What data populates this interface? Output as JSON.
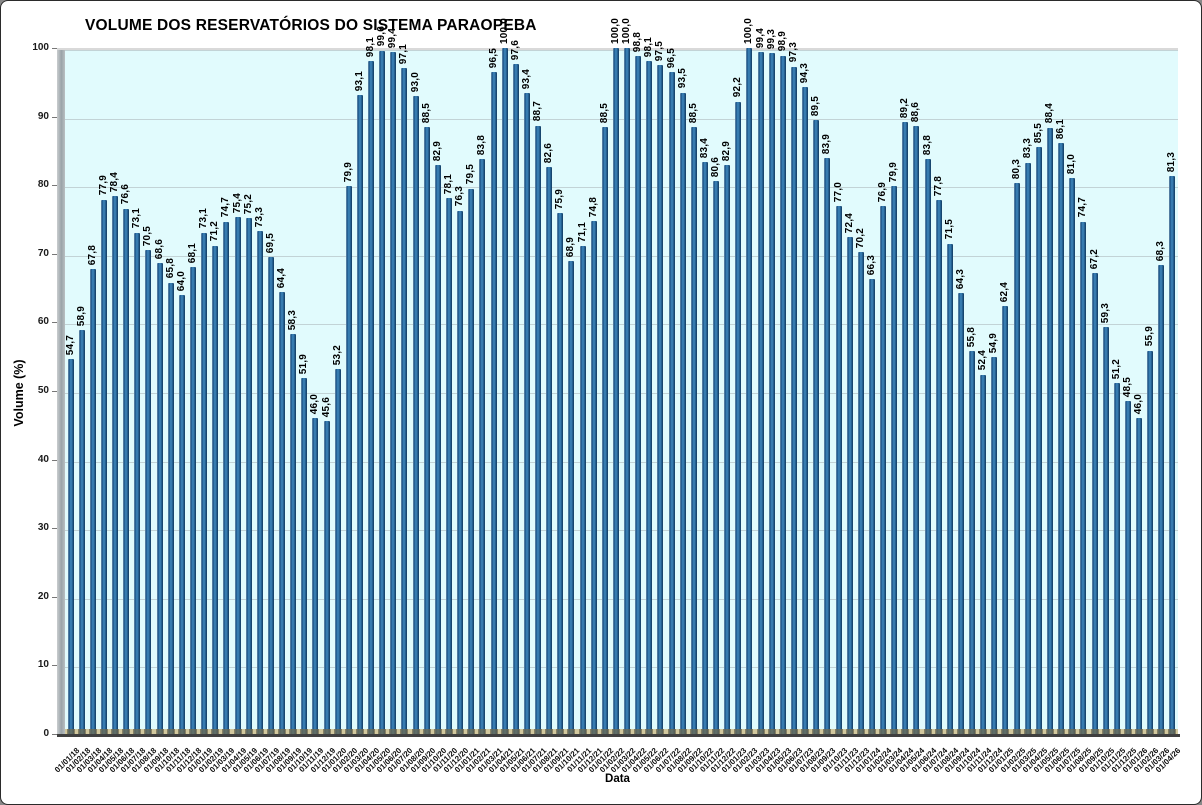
{
  "chart_data": {
    "type": "bar",
    "title": "VOLUME DOS RESERVATÓRIOS DO SISTEMA PARAOPEBA",
    "xlabel": "Data",
    "ylabel": "Volume (%)",
    "ylim": [
      0,
      100
    ],
    "yticks": [
      0,
      10,
      20,
      30,
      40,
      50,
      60,
      70,
      80,
      90,
      100
    ],
    "grid": true,
    "legend": "none",
    "decimal_separator": ",",
    "colors": {
      "bar": "#2e6da4",
      "bar_edge": "#12395e",
      "plot_background": "#e1fbfd",
      "floor": "#d2c89e",
      "wall": "#9aa3a8",
      "axis_line": "#3f3f3f",
      "gridline": "#aab2b6"
    },
    "categories": [
      "01/01/18",
      "01/02/18",
      "01/03/18",
      "01/04/18",
      "01/05/18",
      "01/06/18",
      "01/07/18",
      "01/08/18",
      "01/09/18",
      "01/10/18",
      "01/11/18",
      "01/12/18",
      "01/01/19",
      "01/02/19",
      "01/03/19",
      "01/04/19",
      "01/05/19",
      "01/06/19",
      "01/07/19",
      "01/08/19",
      "01/09/19",
      "01/10/19",
      "01/11/19",
      "01/12/19",
      "01/01/20",
      "01/02/20",
      "01/03/20",
      "01/04/20",
      "01/05/20",
      "01/06/20",
      "01/07/20",
      "01/08/20",
      "01/09/20",
      "01/10/20",
      "01/11/20",
      "01/12/20",
      "01/01/21",
      "01/02/21",
      "01/03/21",
      "01/04/21",
      "01/05/21",
      "01/06/21",
      "01/07/21",
      "01/08/21",
      "01/09/21",
      "01/10/21",
      "01/11/21",
      "01/12/21",
      "01/01/22",
      "01/02/22",
      "01/03/22",
      "01/04/22",
      "01/05/22",
      "01/06/22",
      "01/07/22",
      "01/08/22",
      "01/09/22",
      "01/10/22",
      "01/11/22",
      "01/12/22",
      "01/01/23",
      "01/02/23",
      "01/03/23",
      "01/04/23",
      "01/05/23",
      "01/06/23",
      "01/07/23",
      "01/08/23",
      "01/09/23",
      "01/10/23",
      "01/11/23",
      "01/12/23",
      "01/01/24",
      "01/02/24",
      "01/03/24",
      "01/04/24",
      "01/05/24",
      "01/06/24",
      "01/07/24",
      "01/08/24",
      "01/09/24",
      "01/10/24",
      "01/11/24",
      "01/12/24",
      "01/01/25",
      "01/02/25",
      "01/03/25",
      "01/04/25",
      "01/05/25",
      "01/06/25",
      "01/07/25",
      "01/08/25",
      "01/09/25",
      "01/10/25",
      "01/11/25",
      "01/12/25",
      "01/01/26",
      "01/02/26",
      "01/03/26",
      "01/04/26"
    ],
    "values": [
      54.7,
      58.9,
      67.8,
      77.9,
      78.4,
      76.6,
      73.1,
      70.5,
      68.6,
      65.8,
      64.0,
      68.1,
      73.1,
      71.2,
      74.7,
      75.4,
      75.2,
      73.3,
      69.5,
      64.4,
      58.3,
      51.9,
      46.0,
      45.6,
      53.2,
      79.9,
      93.1,
      98.1,
      99.6,
      99.4,
      97.1,
      93.0,
      88.5,
      82.9,
      78.1,
      76.3,
      79.5,
      83.8,
      96.5,
      100.0,
      97.6,
      93.4,
      88.7,
      82.6,
      75.9,
      68.9,
      71.1,
      74.8,
      88.5,
      100.0,
      100.0,
      98.8,
      98.1,
      97.5,
      96.5,
      93.5,
      88.5,
      83.4,
      80.6,
      82.9,
      92.2,
      100.0,
      99.4,
      99.3,
      98.9,
      97.3,
      94.3,
      89.5,
      83.9,
      77.0,
      72.4,
      70.2,
      66.3,
      76.9,
      79.9,
      89.2,
      88.6,
      83.8,
      77.8,
      71.5,
      64.3,
      55.8,
      52.4,
      54.9,
      62.4,
      80.3,
      83.3,
      85.5,
      88.4,
      86.1,
      81.0,
      74.7,
      67.2,
      59.3,
      51.2,
      48.5,
      46.0,
      55.9,
      68.3,
      81.3
    ],
    "value_labels": [
      "54,7",
      "58,9",
      "67,8",
      "77,9",
      "78,4",
      "76,6",
      "73,1",
      "70,5",
      "68,6",
      "65,8",
      "64,0",
      "68,1",
      "73,1",
      "71,2",
      "74,7",
      "75,4",
      "75,2",
      "73,3",
      "69,5",
      "64,4",
      "58,3",
      "51,9",
      "46,0",
      "45,6",
      "53,2",
      "79,9",
      "93,1",
      "98,1",
      "99,6",
      "99,4",
      "97,1",
      "93,0",
      "88,5",
      "82,9",
      "78,1",
      "76,3",
      "79,5",
      "83,8",
      "96,5",
      "100,0",
      "97,6",
      "93,4",
      "88,7",
      "82,6",
      "75,9",
      "68,9",
      "71,1",
      "74,8",
      "88,5",
      "100,0",
      "100,0",
      "98,8",
      "98,1",
      "97,5",
      "96,5",
      "93,5",
      "88,5",
      "83,4",
      "80,6",
      "82,9",
      "92,2",
      "100,0",
      "99,4",
      "99,3",
      "98,9",
      "97,3",
      "94,3",
      "89,5",
      "83,9",
      "77,0",
      "72,4",
      "70,2",
      "66,3",
      "76,9",
      "79,9",
      "89,2",
      "88,6",
      "83,8",
      "77,8",
      "71,5",
      "64,3",
      "55,8",
      "52,4",
      "54,9",
      "62,4",
      "80,3",
      "83,3",
      "85,5",
      "88,4",
      "86,1",
      "81,0",
      "74,7",
      "67,2",
      "59,3",
      "51,2",
      "48,5",
      "46,0",
      "55,9",
      "68,3",
      "81,3"
    ]
  }
}
